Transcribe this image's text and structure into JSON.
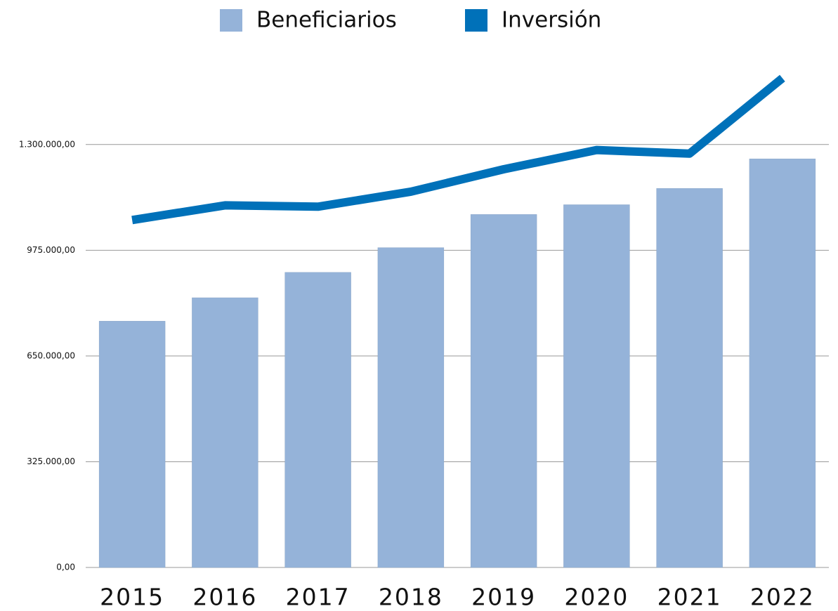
{
  "chart_data": {
    "type": "bar_line",
    "categories": [
      "2015",
      "2016",
      "2017",
      "2018",
      "2019",
      "2020",
      "2021",
      "2022"
    ],
    "series": [
      {
        "name": "Beneficiarios",
        "color": "#95b3d9",
        "type": "bar",
        "values": [
          757000,
          829000,
          907000,
          983000,
          1085000,
          1115000,
          1165000,
          1256000
        ]
      },
      {
        "name": "Inversión",
        "color": "#0071b9",
        "type": "line",
        "values": [
          1068000,
          1113000,
          1109000,
          1155000,
          1224000,
          1283000,
          1272000,
          1504000
        ]
      }
    ],
    "ylim": [
      0,
      1550000
    ],
    "yticks": [
      {
        "value": 0,
        "label": "0,00"
      },
      {
        "value": 325000,
        "label": "325.000,00"
      },
      {
        "value": 650000,
        "label": "650.000,00"
      },
      {
        "value": 975000,
        "label": "975.000,00"
      },
      {
        "value": 1300000,
        "label": "1.300.000,00"
      }
    ],
    "grid": true,
    "legend": "top"
  }
}
